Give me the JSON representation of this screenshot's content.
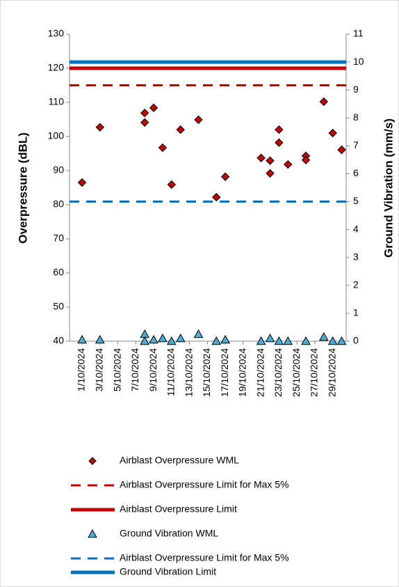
{
  "chart_data": {
    "type": "scatter",
    "xlim": [
      -0.4,
      30.5
    ],
    "xticks": [
      {
        "value": 1,
        "label": "1/10/2024"
      },
      {
        "value": 3,
        "label": "3/10/2024"
      },
      {
        "value": 5,
        "label": "5/10/2024"
      },
      {
        "value": 7,
        "label": "7/10/2024"
      },
      {
        "value": 9,
        "label": "9/10/2024"
      },
      {
        "value": 11,
        "label": "11/10/2024"
      },
      {
        "value": 13,
        "label": "13/10/2024"
      },
      {
        "value": 15,
        "label": "15/10/2024"
      },
      {
        "value": 17,
        "label": "17/10/2024"
      },
      {
        "value": 19,
        "label": "19/10/2024"
      },
      {
        "value": 21,
        "label": "21/10/2024"
      },
      {
        "value": 23,
        "label": "23/10/2024"
      },
      {
        "value": 25,
        "label": "25/10/2024"
      },
      {
        "value": 27,
        "label": "27/10/2024"
      },
      {
        "value": 29,
        "label": "29/10/2024"
      }
    ],
    "y_label": "Overpressure (dBL)",
    "ylim": [
      40,
      130
    ],
    "yticks": [
      40,
      50,
      60,
      70,
      80,
      90,
      100,
      110,
      120,
      130
    ],
    "y2_label": "Ground Vibration (mm/s)",
    "y2lim": [
      0,
      11
    ],
    "y2ticks": [
      0,
      1,
      2,
      3,
      4,
      5,
      6,
      7,
      8,
      9,
      10,
      11
    ],
    "legend": "bottom",
    "series": [
      {
        "name": "Airblast Overpressure WML",
        "color": "#c00000",
        "marker": "diamond",
        "x": [
          1,
          3,
          8,
          8,
          9,
          10,
          11,
          12,
          14,
          16,
          17,
          21,
          22,
          22,
          23,
          23,
          24,
          26,
          26,
          28,
          29,
          30
        ],
        "values": [
          86.5,
          102.7,
          106.9,
          104.1,
          108.4,
          96.7,
          85.9,
          102,
          104.9,
          82.2,
          88.2,
          93.7,
          89.2,
          92.9,
          102,
          98.2,
          91.8,
          94.3,
          93.1,
          110.2,
          101,
          96.1
        ]
      },
      {
        "name": "Airblast Overpressure Limit for Max 5%",
        "color": "#c00000",
        "line": "dashed",
        "value": 115
      },
      {
        "name": "Airblast Overpressure Limit",
        "color": "#c00000",
        "line": "solid",
        "value": 120
      },
      {
        "name": "Ground Vibration WML",
        "color": "#4bacd6",
        "marker": "triangle",
        "axis": "y2",
        "x": [
          1,
          3,
          8,
          8,
          9,
          10,
          11,
          12,
          14,
          16,
          17,
          21,
          22,
          23,
          24,
          26,
          28,
          29,
          30
        ],
        "values": [
          0.05,
          0.05,
          0.25,
          0,
          0.05,
          0.1,
          0,
          0.1,
          0.25,
          0,
          0.05,
          0,
          0.1,
          0,
          0,
          0,
          0.15,
          0,
          0
        ]
      },
      {
        "name": "Airblast Overpressure Limit for Max 5%",
        "color": "#0070c0",
        "line": "dashed",
        "axis": "y2",
        "value": 5
      },
      {
        "name": "Ground Vibration Limit",
        "color": "#0070c0",
        "line": "solid",
        "axis": "y2",
        "value": 10
      }
    ]
  }
}
